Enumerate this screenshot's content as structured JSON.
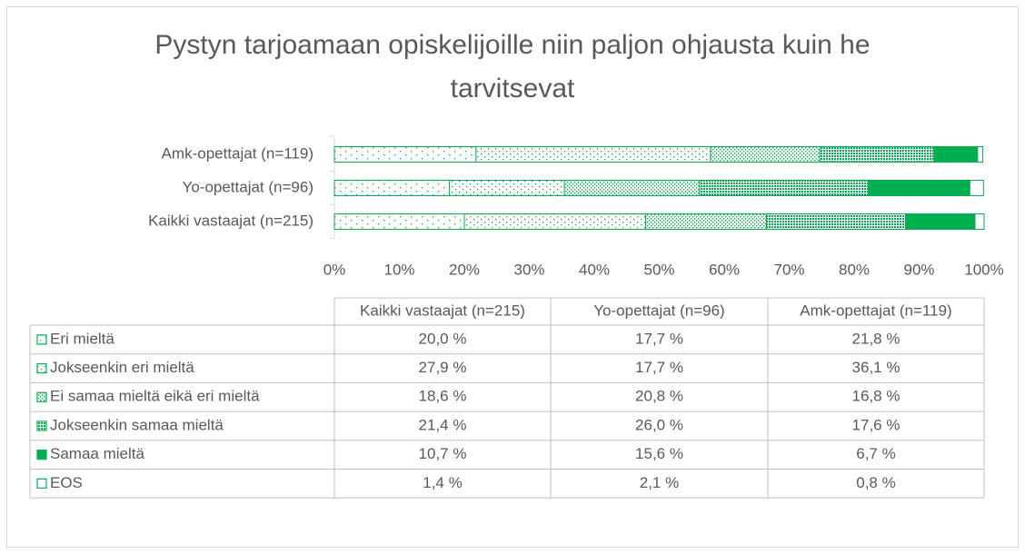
{
  "chart_data": {
    "type": "stacked_bar_horizontal",
    "title": "Pystyn tarjoamaan opiskelijoille niin paljon ohjausta kuin he tarvitsevat",
    "categories": [
      "Kaikki vastaajat (n=215)",
      "Yo-opettajat (n=96)",
      "Amk-opettajat (n=119)"
    ],
    "series": [
      {
        "name": "Eri mieltä",
        "color": "#00b050",
        "values": [
          20.0,
          17.7,
          21.8
        ],
        "value_labels": [
          "20,0 %",
          "17,7 %",
          "21,8 %"
        ]
      },
      {
        "name": "Jokseenkin eri mieltä",
        "color": "#00b050",
        "values": [
          27.9,
          17.7,
          36.1
        ],
        "value_labels": [
          "27,9 %",
          "17,7 %",
          "36,1 %"
        ]
      },
      {
        "name": "Ei samaa mieltä eikä eri mieltä",
        "color": "#00b050",
        "values": [
          18.6,
          20.8,
          16.8
        ],
        "value_labels": [
          "18,6 %",
          "20,8 %",
          "16,8 %"
        ]
      },
      {
        "name": "Jokseenkin samaa mieltä",
        "color": "#00b050",
        "values": [
          21.4,
          26.0,
          17.6
        ],
        "value_labels": [
          "21,4 %",
          "26,0 %",
          "17,6 %"
        ]
      },
      {
        "name": "Samaa mieltä",
        "color": "#00b050",
        "values": [
          10.7,
          15.6,
          6.7
        ],
        "value_labels": [
          "10,7 %",
          "15,6 %",
          "6,7 %"
        ]
      },
      {
        "name": "EOS",
        "color": "#00b050",
        "values": [
          1.4,
          2.1,
          0.8
        ],
        "value_labels": [
          "1,4 %",
          "2,1 %",
          "0,8 %"
        ]
      }
    ],
    "xlim": [
      0,
      100
    ],
    "xticks": [
      {
        "value": 0,
        "label": "0%"
      },
      {
        "value": 10,
        "label": "10%"
      },
      {
        "value": 20,
        "label": "20%"
      },
      {
        "value": 30,
        "label": "30%"
      },
      {
        "value": 40,
        "label": "40%"
      },
      {
        "value": 50,
        "label": "50%"
      },
      {
        "value": 60,
        "label": "60%"
      },
      {
        "value": 70,
        "label": "70%"
      },
      {
        "value": 80,
        "label": "80%"
      },
      {
        "value": 90,
        "label": "90%"
      },
      {
        "value": 100,
        "label": "100%"
      }
    ]
  }
}
